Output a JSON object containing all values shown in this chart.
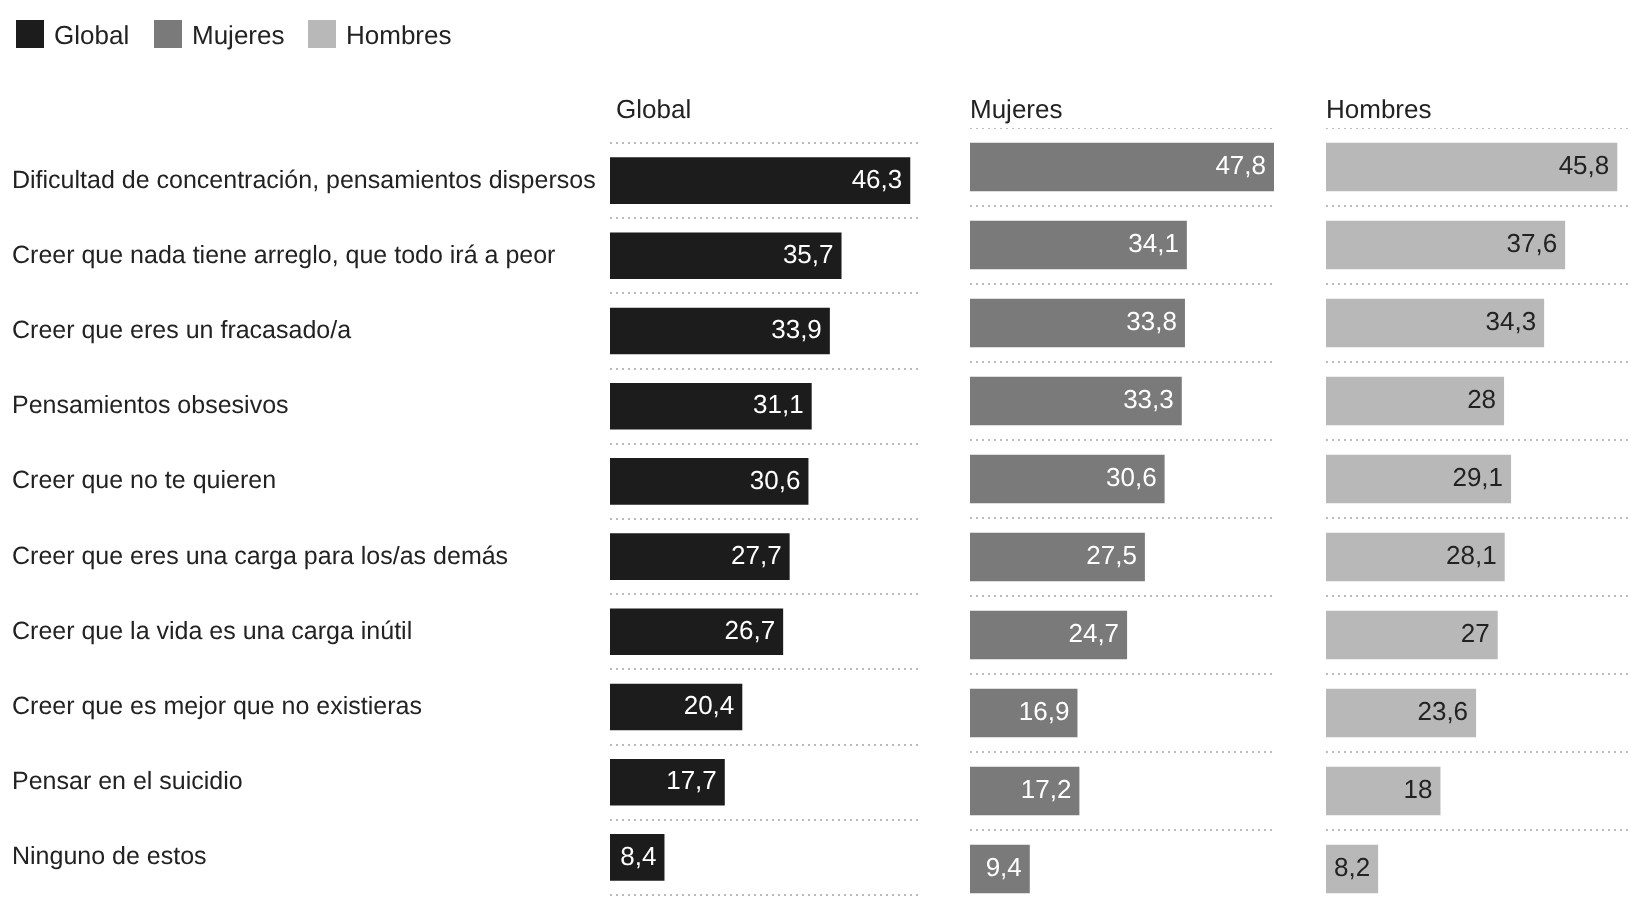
{
  "chart_data": [
    {
      "type": "bar",
      "orientation": "horizontal",
      "title": "Global",
      "legend": "top left",
      "grid": "y",
      "tick_labels": "y",
      "categories": [
        "Dificultad de concentración, pensamientos dispersos",
        "Creer que nada tiene arreglo, que todo irá a peor",
        "Creer que eres un fracasado/a",
        "Pensamientos obsesivos",
        "Creer que no te quieren",
        "Creer que eres una carga para los/as demás",
        "Creer que la vida es una carga inútil",
        "Creer que es mejor que no existieras",
        "Pensar en el suicidio",
        "Ninguno de estos"
      ],
      "series": [
        {
          "name": "Global",
          "color": "#1c1c1c",
          "values": [
            46.3,
            35.7,
            33.9,
            31.1,
            30.6,
            27.7,
            26.7,
            20.4,
            17.7,
            8.4
          ],
          "value_labels": [
            "46,3",
            "35,7",
            "33,9",
            "31,1",
            "30,6",
            "27,7",
            "26,7",
            "20,4",
            "17,7",
            "8,4"
          ]
        }
      ]
    },
    {
      "type": "bar",
      "orientation": "horizontal",
      "title": "Mujeres",
      "legend": "top left",
      "grid": "y",
      "tick_labels": false,
      "categories": [
        null,
        null,
        null,
        null,
        null,
        null,
        null,
        null,
        null,
        null
      ],
      "series": [
        {
          "name": "Mujeres",
          "color": "#7a7a7a",
          "values": [
            47.8,
            34.1,
            33.8,
            33.3,
            30.6,
            27.5,
            24.7,
            16.9,
            17.2,
            9.4
          ],
          "value_labels": [
            "47,8",
            "34,1",
            "33,8",
            "33,3",
            "30,6",
            "27,5",
            "24,7",
            "16,9",
            "17,2",
            "9,4"
          ]
        }
      ]
    },
    {
      "type": "bar",
      "orientation": "horizontal",
      "title": "Hombres",
      "legend": "top left",
      "grid": "y",
      "tick_labels": false,
      "categories": [
        null,
        null,
        null,
        null,
        null,
        null,
        null,
        null,
        null,
        null
      ],
      "series": [
        {
          "name": "Hombres",
          "color": "#b8b8b8",
          "values": [
            45.8,
            37.6,
            34.3,
            28,
            29.1,
            28.1,
            27,
            23.6,
            18,
            8.2
          ],
          "value_labels": [
            "45,8",
            "37,6",
            "34,3",
            "28",
            "29,1",
            "28,1",
            "27",
            "23,6",
            "18",
            "8,2"
          ]
        }
      ]
    }
  ]
}
